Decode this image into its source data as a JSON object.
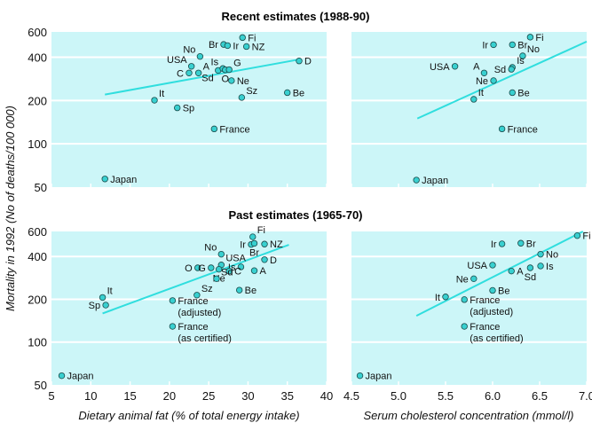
{
  "titles": {
    "top": "Recent estimates (1988-90)",
    "bottom": "Past estimates (1965-70)"
  },
  "ylabel": "Mortality in 1992 (No of deaths/100 000)",
  "xlabels": {
    "fat": "Dietary animal fat (% of total energy intake)",
    "chol": "Serum cholesterol concentration (mmol/l)"
  },
  "colors": {
    "panel": "#ccf6f8",
    "grid": "#ffffff",
    "point": "#38d0d0",
    "point_outline": "#1a4a4a",
    "trend": "#30dede"
  },
  "chart_data": [
    {
      "type": "scatter",
      "row": "top",
      "column": "fat",
      "yscale": "log",
      "xlim": [
        5,
        40
      ],
      "ylim": [
        50,
        600
      ],
      "yticks": [
        50,
        100,
        200,
        400,
        600
      ],
      "xticks": [
        5,
        10,
        15,
        20,
        25,
        30,
        35,
        40
      ],
      "trend": [
        [
          11.8,
          220
        ],
        [
          36.5,
          386
        ]
      ],
      "points": [
        {
          "label": "Fi",
          "x": 29.3,
          "y": 548,
          "pos": "right"
        },
        {
          "label": "Br",
          "x": 26.9,
          "y": 491,
          "pos": "left"
        },
        {
          "label": "Ir",
          "x": 27.4,
          "y": 482,
          "pos": "right"
        },
        {
          "label": "NZ",
          "x": 29.8,
          "y": 475,
          "pos": "right"
        },
        {
          "label": "No",
          "x": 23.9,
          "y": 405,
          "pos": "above-left"
        },
        {
          "label": "USA",
          "x": 22.8,
          "y": 346,
          "pos": "above-left"
        },
        {
          "label": "C",
          "x": 22.5,
          "y": 311,
          "pos": "left"
        },
        {
          "label": "A",
          "x": 23.7,
          "y": 311,
          "pos": "above-right"
        },
        {
          "label": "Sd",
          "x": 26.2,
          "y": 324,
          "pos": "below-left"
        },
        {
          "label": "Is",
          "x": 26.8,
          "y": 334,
          "pos": "above-left"
        },
        {
          "label": "O",
          "x": 27.1,
          "y": 327,
          "pos": "below"
        },
        {
          "label": "G",
          "x": 27.6,
          "y": 328,
          "pos": "above-right"
        },
        {
          "label": "Ne",
          "x": 27.9,
          "y": 275,
          "pos": "right"
        },
        {
          "label": "D",
          "x": 36.5,
          "y": 377,
          "pos": "right"
        },
        {
          "label": "Be",
          "x": 35.0,
          "y": 227,
          "pos": "right"
        },
        {
          "label": "Sz",
          "x": 29.2,
          "y": 210,
          "pos": "above-right"
        },
        {
          "label": "It",
          "x": 18.1,
          "y": 201,
          "pos": "above-right"
        },
        {
          "label": "Sp",
          "x": 21.0,
          "y": 178,
          "pos": "right"
        },
        {
          "label": "France",
          "x": 25.7,
          "y": 127,
          "pos": "right"
        },
        {
          "label": "Japan",
          "x": 11.8,
          "y": 57,
          "pos": "right"
        }
      ]
    },
    {
      "type": "scatter",
      "row": "top",
      "column": "chol",
      "yscale": "log",
      "xlim": [
        4.5,
        7.0
      ],
      "ylim": [
        50,
        600
      ],
      "yticks": [
        50,
        100,
        200,
        400,
        600
      ],
      "xticks": [
        "4.5",
        "5.0",
        "5.5",
        "6.0",
        "6.5",
        "7.0"
      ],
      "trend": [
        [
          5.2,
          150
        ],
        [
          7.0,
          514
        ]
      ],
      "points": [
        {
          "label": "Fi",
          "x": 6.4,
          "y": 552,
          "pos": "right"
        },
        {
          "label": "Br",
          "x": 6.21,
          "y": 489,
          "pos": "right"
        },
        {
          "label": "Ir",
          "x": 6.01,
          "y": 489,
          "pos": "left"
        },
        {
          "label": "No",
          "x": 6.32,
          "y": 409,
          "pos": "above-right"
        },
        {
          "label": "Is",
          "x": 6.21,
          "y": 340,
          "pos": "above-right"
        },
        {
          "label": "Sd",
          "x": 6.2,
          "y": 330,
          "pos": "left"
        },
        {
          "label": "USA",
          "x": 5.6,
          "y": 346,
          "pos": "left"
        },
        {
          "label": "A",
          "x": 5.91,
          "y": 311,
          "pos": "above-left"
        },
        {
          "label": "Ne",
          "x": 6.01,
          "y": 275,
          "pos": "left"
        },
        {
          "label": "Be",
          "x": 6.21,
          "y": 227,
          "pos": "right"
        },
        {
          "label": "It",
          "x": 5.8,
          "y": 204,
          "pos": "above-right"
        },
        {
          "label": "France",
          "x": 6.1,
          "y": 127,
          "pos": "right"
        },
        {
          "label": "Japan",
          "x": 5.19,
          "y": 56,
          "pos": "right"
        }
      ]
    },
    {
      "type": "scatter",
      "row": "bottom",
      "column": "fat",
      "yscale": "log",
      "xlim": [
        5,
        40
      ],
      "ylim": [
        50,
        600
      ],
      "yticks": [
        50,
        100,
        200,
        400,
        600
      ],
      "xticks": [
        5,
        10,
        15,
        20,
        25,
        30,
        35,
        40
      ],
      "trend": [
        [
          11.5,
          159
        ],
        [
          35.2,
          483
        ]
      ],
      "points": [
        {
          "label": "Fi",
          "x": 30.6,
          "y": 550,
          "pos": "above-right"
        },
        {
          "label": "Ir",
          "x": 30.4,
          "y": 486,
          "pos": "left"
        },
        {
          "label": "Br",
          "x": 30.8,
          "y": 495,
          "pos": "below"
        },
        {
          "label": "NZ",
          "x": 32.1,
          "y": 489,
          "pos": "right"
        },
        {
          "label": "No",
          "x": 26.6,
          "y": 415,
          "pos": "above-left"
        },
        {
          "label": "D",
          "x": 32.1,
          "y": 380,
          "pos": "right"
        },
        {
          "label": "USA",
          "x": 26.6,
          "y": 349,
          "pos": "above-right"
        },
        {
          "label": "Is",
          "x": 29.1,
          "y": 338,
          "pos": "left"
        },
        {
          "label": "A",
          "x": 30.8,
          "y": 318,
          "pos": "right"
        },
        {
          "label": "O",
          "x": 23.6,
          "y": 333,
          "pos": "left"
        },
        {
          "label": "G",
          "x": 25.3,
          "y": 333,
          "pos": "left"
        },
        {
          "label": "Ne",
          "x": 26.3,
          "y": 325,
          "pos": "below"
        },
        {
          "label": "C",
          "x": 27.6,
          "y": 316,
          "pos": "right"
        },
        {
          "label": "Sd",
          "x": 26.0,
          "y": 279,
          "pos": "above-right"
        },
        {
          "label": "Be",
          "x": 28.9,
          "y": 232,
          "pos": "right"
        },
        {
          "label": "Sz",
          "x": 23.5,
          "y": 214,
          "pos": "above-right"
        },
        {
          "label": "It",
          "x": 11.5,
          "y": 206,
          "pos": "above-right"
        },
        {
          "label": "Sp",
          "x": 11.9,
          "y": 182,
          "pos": "left"
        },
        {
          "label": "France",
          "label2": "(adjusted)",
          "x": 20.4,
          "y": 196,
          "pos": "right"
        },
        {
          "label": "France",
          "label2": "(as certified)",
          "x": 20.4,
          "y": 129,
          "pos": "right"
        },
        {
          "label": "Japan",
          "x": 6.3,
          "y": 58,
          "pos": "right"
        }
      ]
    },
    {
      "type": "scatter",
      "row": "bottom",
      "column": "chol",
      "yscale": "log",
      "xlim": [
        4.5,
        7.0
      ],
      "ylim": [
        50,
        600
      ],
      "yticks": [
        50,
        100,
        200,
        400,
        600
      ],
      "xticks": [
        "4.5",
        "5.0",
        "5.5",
        "6.0",
        "6.5",
        "7.0"
      ],
      "trend": [
        [
          5.19,
          153
        ],
        [
          6.96,
          600
        ]
      ],
      "points": [
        {
          "label": "Fi",
          "x": 6.9,
          "y": 561,
          "pos": "right"
        },
        {
          "label": "Ir",
          "x": 6.1,
          "y": 491,
          "pos": "left"
        },
        {
          "label": "Br",
          "x": 6.3,
          "y": 496,
          "pos": "right"
        },
        {
          "label": "No",
          "x": 6.51,
          "y": 415,
          "pos": "right"
        },
        {
          "label": "Is",
          "x": 6.51,
          "y": 343,
          "pos": "right"
        },
        {
          "label": "Sd",
          "x": 6.4,
          "y": 333,
          "pos": "below"
        },
        {
          "label": "A",
          "x": 6.2,
          "y": 316,
          "pos": "right"
        },
        {
          "label": "USA",
          "x": 6.0,
          "y": 348,
          "pos": "left"
        },
        {
          "label": "Ne",
          "x": 5.8,
          "y": 279,
          "pos": "left"
        },
        {
          "label": "Be",
          "x": 6.0,
          "y": 231,
          "pos": "right"
        },
        {
          "label": "It",
          "x": 5.5,
          "y": 208,
          "pos": "left"
        },
        {
          "label": "France",
          "label2": "(adjusted)",
          "x": 5.7,
          "y": 199,
          "pos": "right"
        },
        {
          "label": "France",
          "label2": "(as certified)",
          "x": 5.7,
          "y": 129,
          "pos": "right"
        },
        {
          "label": "Japan",
          "x": 4.59,
          "y": 58,
          "pos": "right"
        }
      ]
    }
  ]
}
